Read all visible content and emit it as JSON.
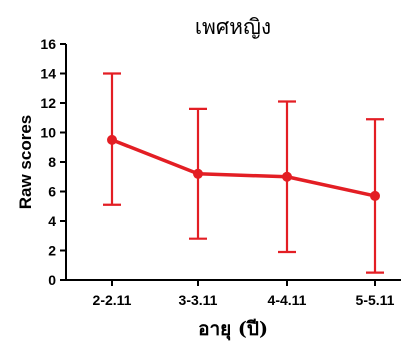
{
  "chart_data": {
    "type": "line",
    "title": "เพศหญิง",
    "xlabel": "อายุ (ปี)",
    "ylabel": "Raw scores",
    "categories": [
      "2-2.11",
      "3-3.11",
      "4-4.11",
      "5-5.11"
    ],
    "ylim": [
      0,
      16
    ],
    "yticks": [
      "0",
      "2",
      "4",
      "6",
      "8",
      "10",
      "12",
      "14",
      "16"
    ],
    "grid": false,
    "series": [
      {
        "values": [
          9.5,
          7.2,
          7.0,
          5.7
        ],
        "error_low": [
          5.1,
          2.8,
          1.9,
          0.5
        ],
        "error_high": [
          14.0,
          11.6,
          12.1,
          10.9
        ]
      }
    ],
    "colors": {
      "series": "#e31e24",
      "axis": "#000000"
    }
  }
}
